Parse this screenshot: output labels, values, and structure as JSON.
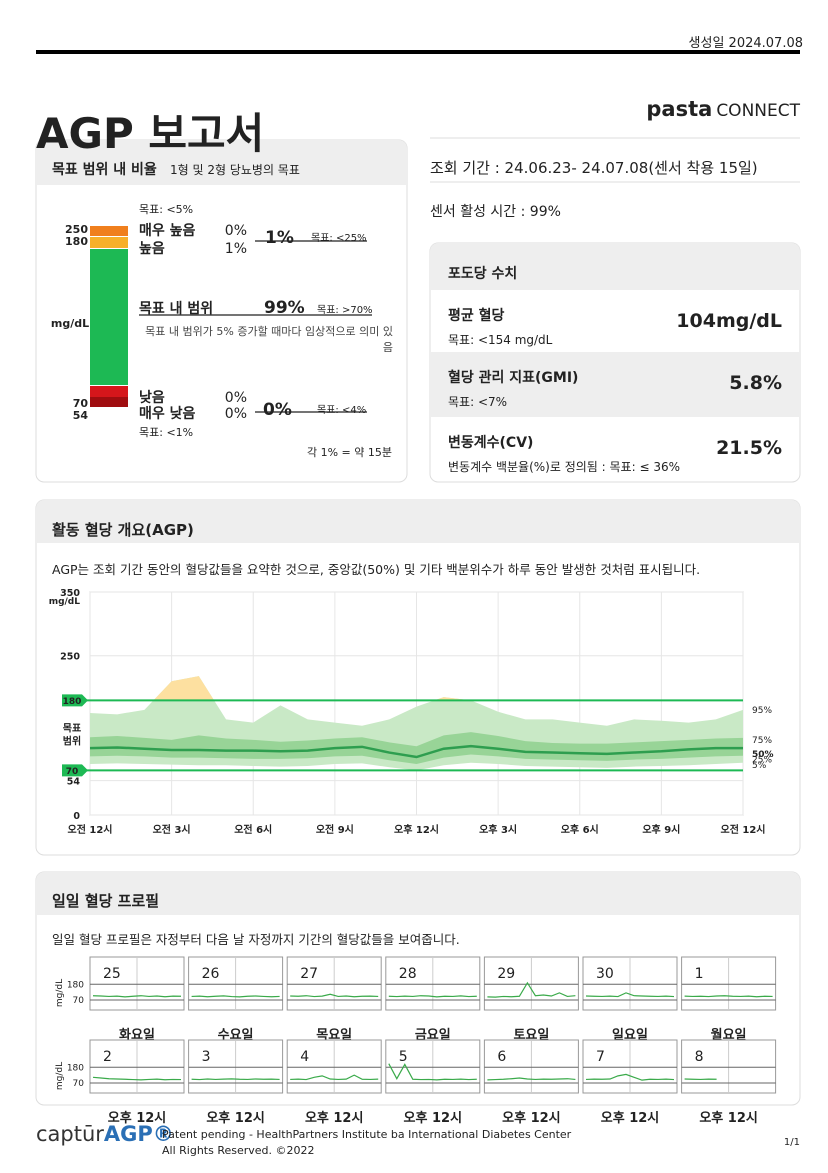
{
  "header": {
    "created": "생성일 2024.07.08",
    "title": "AGP 보고서",
    "brand": "pasta",
    "brand_sub": "CONNECT"
  },
  "info": {
    "period": "조회 기간 : 24.06.23- 24.07.08(센서 착용 15일)",
    "active": "센서 활성 시간 : 99%"
  },
  "tir": {
    "title": "목표 범위 내 비율",
    "subtitle": "1형 및 2형 당뇨병의 목표",
    "unit": "mg/dL",
    "thresholds": [
      "250",
      "180",
      "70",
      "54"
    ],
    "very_high": {
      "target": "목표: <5%",
      "label": "매우 높음",
      "value": "0%"
    },
    "high": {
      "label": "높음",
      "value": "1%"
    },
    "high_total": {
      "value": "1%",
      "target": "목표: <25%"
    },
    "in_range": {
      "label": "목표 내 범위",
      "value": "99%",
      "target": "목표: >70%",
      "note": "목표 내 범위가 5% 증가할 때마다 임상적으로 의미 있음"
    },
    "low": {
      "label": "낮음",
      "value": "0%"
    },
    "very_low": {
      "label": "매우 낮음",
      "value": "0%",
      "target": "목표: <1%"
    },
    "low_total": {
      "value": "0%",
      "target": "목표: <4%"
    },
    "scale_note": "각 1% = 약 15분"
  },
  "glucose": {
    "title": "포도당 수치",
    "items": [
      {
        "label": "평균 혈당",
        "target": "목표: <154 mg/dL",
        "value": "104mg/dL"
      },
      {
        "label": "혈당 관리 지표(GMI)",
        "target": "목표: <7%",
        "value": "5.8%"
      },
      {
        "label": "변동계수(CV)",
        "target": "변동계수 백분율(%)로 정의됨 : 목표: ≤ 36%",
        "value": "21.5%"
      }
    ]
  },
  "agp": {
    "title": "활동 혈당 개요(AGP)",
    "desc": "AGP는 조회 기간 동안의 혈당값들을 요약한 것으로, 중앙값(50%) 및 기타 백분위수가 하루 동안 발생한 것처럼 표시됩니다.",
    "chart_data": {
      "type": "area",
      "y_label": "mg/dL",
      "target_label": "목표 범위",
      "target_range": [
        70,
        180
      ],
      "x": [
        0,
        1,
        2,
        3,
        4,
        5,
        6,
        7,
        8,
        9,
        10,
        11,
        12,
        13,
        14,
        15,
        16,
        17,
        18,
        19,
        20,
        21,
        22,
        23,
        24
      ],
      "xlim": [
        0,
        24
      ],
      "xticks": [
        {
          "value": 0,
          "label": "오전 12시"
        },
        {
          "value": 3,
          "label": "오전 3시"
        },
        {
          "value": 6,
          "label": "오전 6시"
        },
        {
          "value": 9,
          "label": "오전 9시"
        },
        {
          "value": 12,
          "label": "오후 12시"
        },
        {
          "value": 15,
          "label": "오후 3시"
        },
        {
          "value": 18,
          "label": "오후 6시"
        },
        {
          "value": 21,
          "label": "오후 9시"
        },
        {
          "value": 24,
          "label": "오전 12시"
        }
      ],
      "ylim": [
        0,
        350
      ],
      "yticks": [
        0,
        54,
        70,
        180,
        250,
        350
      ],
      "grid": true,
      "series": [
        {
          "name": "95%",
          "color": "#c9e9c6",
          "values": [
            160,
            158,
            165,
            210,
            218,
            150,
            145,
            172,
            150,
            145,
            140,
            150,
            170,
            185,
            180,
            162,
            150,
            150,
            145,
            140,
            150,
            148,
            145,
            150,
            165
          ]
        },
        {
          "name": "75%",
          "color": "#98d497",
          "values": [
            122,
            124,
            121,
            118,
            125,
            120,
            118,
            115,
            117,
            120,
            122,
            114,
            108,
            125,
            130,
            124,
            116,
            113,
            112,
            112,
            114,
            116,
            118,
            120,
            121
          ]
        },
        {
          "name": "50%",
          "color": "#2e9e4f",
          "values": [
            105,
            106,
            104,
            102,
            102,
            101,
            101,
            100,
            101,
            105,
            107,
            98,
            91,
            104,
            108,
            104,
            99,
            98,
            97,
            96,
            98,
            100,
            103,
            105,
            105
          ]
        },
        {
          "name": "25%",
          "color": "#98d497",
          "values": [
            92,
            93,
            92,
            90,
            90,
            89,
            88,
            88,
            89,
            92,
            93,
            86,
            80,
            90,
            95,
            92,
            88,
            87,
            86,
            85,
            87,
            88,
            90,
            92,
            93
          ]
        },
        {
          "name": "5%",
          "color": "#c9e9c6",
          "values": [
            80,
            81,
            80,
            79,
            78,
            78,
            77,
            76,
            77,
            80,
            81,
            75,
            70,
            78,
            82,
            80,
            77,
            76,
            75,
            74,
            76,
            77,
            78,
            80,
            82
          ]
        }
      ],
      "high_color": "#fde0a0"
    }
  },
  "daily": {
    "title": "일일 혈당 프로필",
    "desc": "일일 혈당 프로필은 자정부터 다음 날 자정까지 기간의 혈당값들을 보여줍니다.",
    "y_label": "mg/dL",
    "x_label": "오후 12시",
    "ylim": [
      0,
      350
    ],
    "yticks": [
      70,
      180
    ],
    "color": "#3aaa4a",
    "weekdays": [
      "화요일",
      "수요일",
      "목요일",
      "금요일",
      "토요일",
      "일요일",
      "월요일"
    ],
    "rows": [
      {
        "days": [
          "25",
          "26",
          "27",
          "28",
          "29",
          "30",
          "1"
        ],
        "profiles": [
          [
            100,
            98,
            95,
            97,
            92,
            96,
            100,
            95,
            98,
            93,
            97,
            96
          ],
          [
            95,
            97,
            93,
            96,
            99,
            94,
            92,
            96,
            98,
            95,
            93,
            95
          ],
          [
            98,
            96,
            100,
            94,
            97,
            110,
            95,
            98,
            93,
            96,
            97,
            95
          ],
          [
            96,
            94,
            97,
            95,
            100,
            98,
            92,
            96,
            95,
            99,
            94,
            96
          ],
          [
            92,
            90,
            95,
            93,
            96,
            190,
            100,
            105,
            98,
            120,
            95,
            100
          ],
          [
            98,
            96,
            95,
            97,
            94,
            120,
            100,
            98,
            96,
            95,
            97,
            94
          ],
          [
            97,
            95,
            96,
            94,
            98,
            100,
            96,
            95,
            97,
            93,
            96,
            95
          ]
        ]
      },
      {
        "days": [
          "2",
          "3",
          "4",
          "5",
          "6",
          "7",
          "8"
        ],
        "profiles": [
          [
            110,
            105,
            100,
            98,
            96,
            94,
            92,
            95,
            97,
            93,
            95,
            94
          ],
          [
            96,
            94,
            98,
            95,
            97,
            99,
            96,
            95,
            98,
            96,
            97,
            95
          ],
          [
            95,
            97,
            94,
            110,
            120,
            98,
            95,
            97,
            125,
            96,
            95,
            97
          ],
          [
            205,
            100,
            200,
            96,
            94,
            95,
            92,
            96,
            95,
            97,
            94,
            96
          ],
          [
            92,
            94,
            96,
            100,
            105,
            98,
            95,
            97,
            96,
            98,
            100,
            95
          ],
          [
            95,
            97,
            96,
            98,
            120,
            130,
            110,
            90,
            96,
            95,
            97,
            94
          ],
          [
            98,
            96,
            95,
            97,
            96,
            null,
            null,
            null,
            null,
            null,
            null,
            null
          ]
        ]
      }
    ]
  },
  "footer": {
    "logo": "captūr",
    "logo_bold": "AGP®",
    "patent": "Patent pending - HealthPartners Institute ba International  Diabetes Center",
    "rights": "All Rights Reserved. ©2022",
    "page": "1/1"
  }
}
